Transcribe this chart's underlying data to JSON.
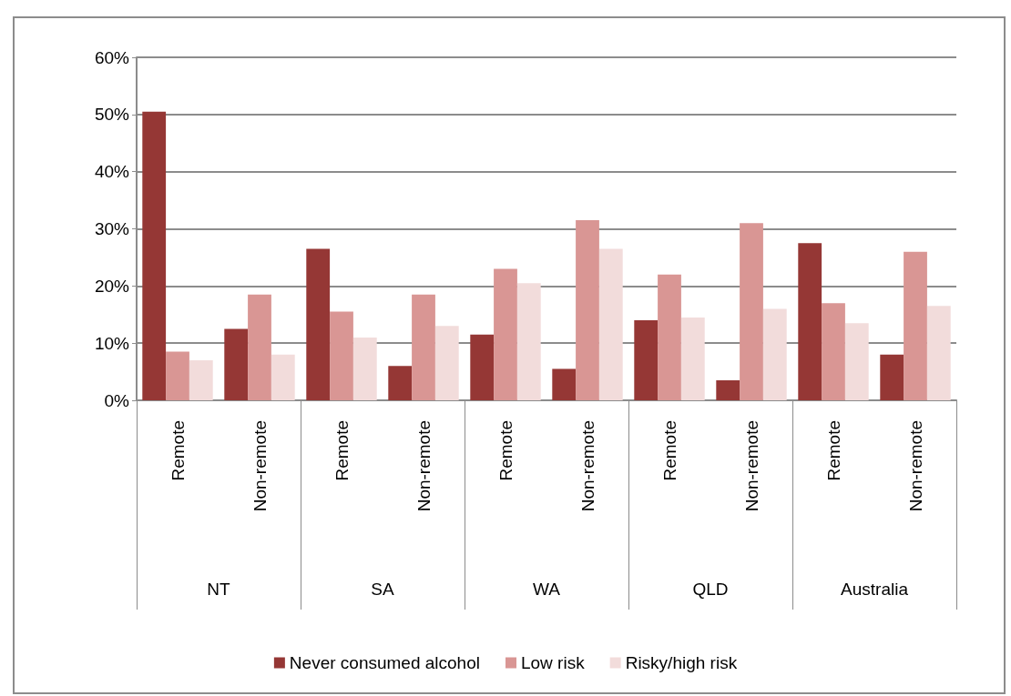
{
  "chart_data": {
    "type": "bar",
    "categories": [
      "Remote",
      "Non-remote",
      "Remote",
      "Non-remote",
      "Remote",
      "Non-remote",
      "Remote",
      "Non-remote",
      "Remote",
      "Non-remote"
    ],
    "annotations": [
      "NT",
      "SA",
      "WA",
      "QLD",
      "Australia"
    ],
    "series": [
      {
        "name": "Never consumed alcohol",
        "color": "#953735",
        "values": [
          50.5,
          12.5,
          26.5,
          6,
          11.5,
          5.5,
          14,
          3.5,
          27.5,
          8
        ]
      },
      {
        "name": "Low risk",
        "color": "#d99694",
        "values": [
          8.5,
          18.5,
          15.5,
          18.5,
          23,
          31.5,
          22,
          31,
          17,
          26
        ]
      },
      {
        "name": "Risky/high risk",
        "color": "#f2dcdb",
        "values": [
          7,
          8,
          11,
          13,
          20.5,
          26.5,
          14.5,
          16,
          13.5,
          16.5
        ]
      }
    ],
    "ylim": [
      0,
      60
    ],
    "yticks": [
      {
        "value": 0,
        "label": "0%"
      },
      {
        "value": 10,
        "label": "10%"
      },
      {
        "value": 20,
        "label": "20%"
      },
      {
        "value": 30,
        "label": "30%"
      },
      {
        "value": 40,
        "label": "40%"
      },
      {
        "value": 50,
        "label": "50%"
      },
      {
        "value": 60,
        "label": "60%"
      }
    ],
    "grid": "y",
    "legend": "bottom"
  }
}
